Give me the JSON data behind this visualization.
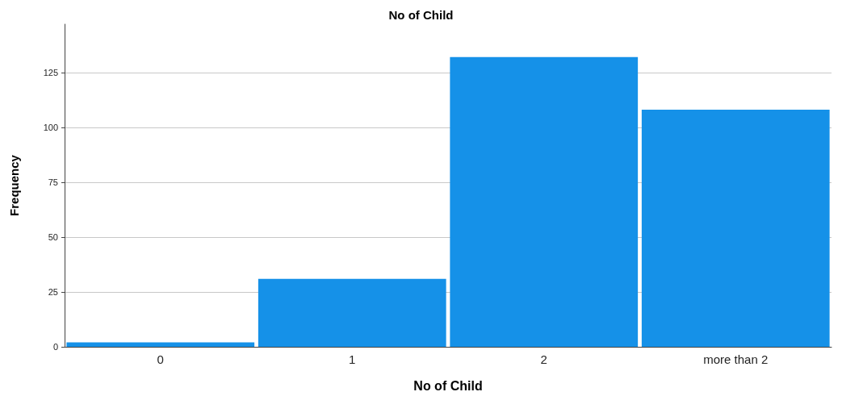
{
  "chart_data": {
    "type": "bar",
    "title": "No of Child",
    "xlabel": "No of Child",
    "ylabel": "Frequency",
    "categories": [
      "0",
      "1",
      "2",
      "more than 2"
    ],
    "series": [
      {
        "color": "#1591e8",
        "values": [
          2,
          31,
          132,
          108
        ]
      }
    ],
    "ylim": [
      0,
      147
    ],
    "yticks": [
      0,
      25,
      50,
      75,
      100,
      125
    ],
    "grid": "y"
  }
}
